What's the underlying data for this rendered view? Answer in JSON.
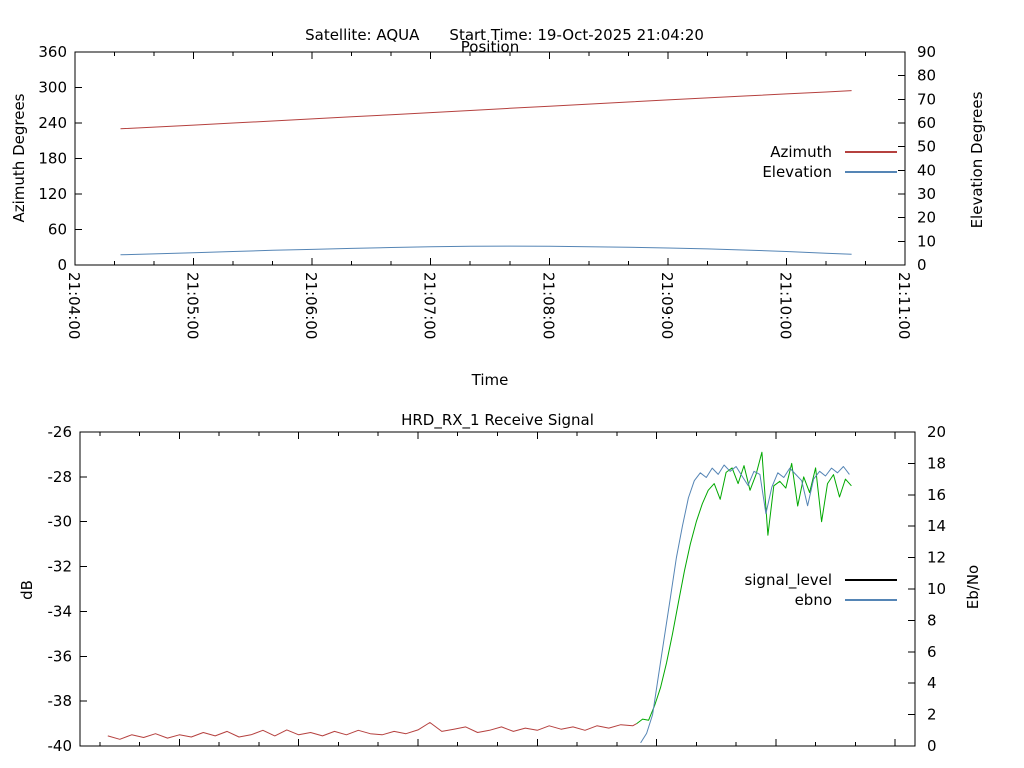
{
  "header": {
    "satellite_label": "Satellite: AQUA",
    "start_time_label": "Start Time: 19-Oct-2025 21:04:20"
  },
  "chart_data": [
    {
      "type": "line",
      "title": "Position",
      "xlabel": "Time",
      "ylabel_left": "Azimuth Degrees",
      "ylabel_right": "Elevation Degrees",
      "x_origin": "21:04:00",
      "x_range_seconds": [
        0,
        420
      ],
      "x_tick_labels": [
        "21:04:00",
        "21:05:00",
        "21:06:00",
        "21:07:00",
        "21:08:00",
        "21:09:00",
        "21:10:00",
        "21:11:00"
      ],
      "x_minor_tick_seconds": 20,
      "y_left_range": [
        0,
        360
      ],
      "y_left_tick_step": 60,
      "y_right_range": [
        0,
        90
      ],
      "y_right_tick_step": 10,
      "grid": false,
      "legend_position": "inside-right",
      "legend": [
        {
          "label": "Azimuth",
          "color": "#b5413f"
        },
        {
          "label": "Elevation",
          "color": "#5585b5"
        }
      ],
      "series": [
        {
          "name": "Azimuth",
          "axis": "left",
          "color": "#b5413f",
          "t": [
            23,
            40,
            60,
            80,
            100,
            120,
            140,
            160,
            180,
            200,
            220,
            240,
            260,
            280,
            300,
            320,
            340,
            360,
            380,
            393
          ],
          "v": [
            230.2,
            233.0,
            236.5,
            240.0,
            243.4,
            246.9,
            250.4,
            254.0,
            257.6,
            261.2,
            264.8,
            268.4,
            272.0,
            275.5,
            279.0,
            282.4,
            285.8,
            289.1,
            292.4,
            294.8
          ]
        },
        {
          "name": "Elevation",
          "axis": "right",
          "color": "#5585b5",
          "t": [
            23,
            40,
            60,
            80,
            100,
            120,
            140,
            160,
            180,
            200,
            220,
            240,
            260,
            280,
            300,
            320,
            340,
            360,
            380,
            393
          ],
          "v": [
            4.3,
            4.7,
            5.2,
            5.7,
            6.2,
            6.6,
            7.0,
            7.4,
            7.7,
            7.9,
            8.0,
            7.9,
            7.7,
            7.5,
            7.2,
            6.8,
            6.3,
            5.7,
            5.0,
            4.5
          ]
        }
      ]
    },
    {
      "type": "line",
      "title": "HRD_RX_1 Receive Signal",
      "xlabel": "",
      "ylabel_left": "dB",
      "ylabel_right": "Eb/No",
      "x_origin": "21:04:00",
      "x_range_seconds": [
        10,
        430
      ],
      "x_tick_labels": [],
      "x_minor_tick_seconds": 20,
      "y_left_range": [
        -40,
        -26
      ],
      "y_left_tick_step": 2,
      "y_right_range": [
        0,
        20
      ],
      "y_right_tick_step": 2,
      "grid": false,
      "legend_position": "inside-right",
      "legend": [
        {
          "label": "signal_level",
          "color": "#000000"
        },
        {
          "label": "ebno",
          "color": "#5585b5"
        }
      ],
      "series": [
        {
          "name": "signal_level (pre-lock segment)",
          "axis": "left",
          "color": "#b5413f",
          "t": [
            24,
            30,
            36,
            42,
            48,
            54,
            60,
            66,
            72,
            78,
            84,
            90,
            96,
            102,
            108,
            114,
            120,
            126,
            132,
            138,
            144,
            150,
            156,
            162,
            168,
            174,
            180,
            186,
            192,
            198,
            204,
            210,
            216,
            222,
            228,
            234,
            240,
            246,
            252,
            258,
            264,
            270,
            276,
            282,
            288,
            290
          ],
          "v": [
            -39.55,
            -39.7,
            -39.5,
            -39.62,
            -39.45,
            -39.65,
            -39.5,
            -39.6,
            -39.4,
            -39.55,
            -39.35,
            -39.6,
            -39.5,
            -39.3,
            -39.55,
            -39.28,
            -39.5,
            -39.4,
            -39.55,
            -39.35,
            -39.5,
            -39.3,
            -39.45,
            -39.5,
            -39.35,
            -39.45,
            -39.28,
            -38.95,
            -39.35,
            -39.25,
            -39.15,
            -39.4,
            -39.3,
            -39.15,
            -39.35,
            -39.2,
            -39.3,
            -39.1,
            -39.25,
            -39.15,
            -39.3,
            -39.1,
            -39.2,
            -39.05,
            -39.1,
            -39.0
          ]
        },
        {
          "name": "signal_level (locked segment)",
          "axis": "left",
          "color": "#00a800",
          "t": [
            290,
            293,
            296,
            299,
            302,
            305,
            308,
            311,
            314,
            317,
            320,
            323,
            326,
            329,
            332,
            335,
            338,
            341,
            344,
            347,
            350,
            353,
            356,
            359,
            362,
            365,
            368,
            371,
            374,
            377,
            380,
            383,
            386,
            389,
            392,
            395,
            398
          ],
          "v": [
            -39.0,
            -38.8,
            -38.85,
            -38.2,
            -37.4,
            -36.3,
            -35.0,
            -33.6,
            -32.2,
            -31.0,
            -30.0,
            -29.2,
            -28.6,
            -28.3,
            -29.0,
            -27.8,
            -27.6,
            -28.3,
            -27.5,
            -28.6,
            -27.9,
            -26.9,
            -30.6,
            -28.4,
            -28.2,
            -28.5,
            -27.4,
            -29.3,
            -28.0,
            -28.7,
            -27.6,
            -30.0,
            -28.3,
            -27.9,
            -28.9,
            -28.1,
            -28.4
          ]
        },
        {
          "name": "ebno",
          "axis": "right",
          "color": "#5585b5",
          "t": [
            292,
            295,
            298,
            301,
            304,
            307,
            310,
            313,
            316,
            319,
            322,
            325,
            328,
            331,
            334,
            337,
            340,
            343,
            346,
            349,
            352,
            355,
            358,
            361,
            364,
            367,
            370,
            373,
            376,
            379,
            382,
            385,
            388,
            391,
            394,
            397
          ],
          "v": [
            0.2,
            0.8,
            2.0,
            4.5,
            7.0,
            9.5,
            12.0,
            14.0,
            15.8,
            16.9,
            17.4,
            17.1,
            17.7,
            17.3,
            17.9,
            17.5,
            17.8,
            17.2,
            16.6,
            17.5,
            17.3,
            14.8,
            16.5,
            17.4,
            17.1,
            17.7,
            17.3,
            16.9,
            15.3,
            17.0,
            17.5,
            17.2,
            17.7,
            17.4,
            17.8,
            17.3
          ]
        }
      ]
    }
  ]
}
